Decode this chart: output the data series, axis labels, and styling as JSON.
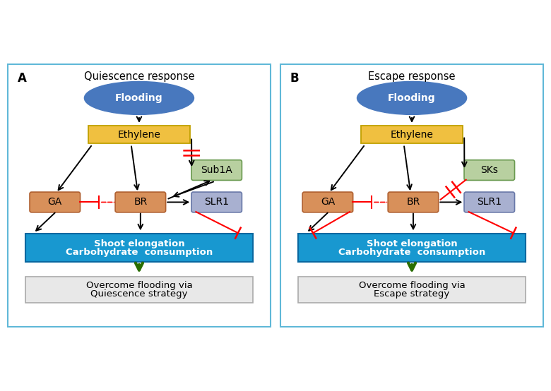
{
  "panel_A": {
    "label": "A",
    "title": "Quiescence response",
    "flooding_text": "Flooding",
    "ethylene_text": "Ethylene",
    "gene1_text": "Sub1A",
    "ga_text": "GA",
    "br_text": "BR",
    "slr1_text": "SLR1",
    "elongation_line1": "Shoot elongation",
    "elongation_line2": "Carbohydrate  consumption",
    "outcome_line1": "Overcome flooding via",
    "outcome_line2": "Quiescence strategy"
  },
  "panel_B": {
    "label": "B",
    "title": "Escape response",
    "flooding_text": "Flooding",
    "ethylene_text": "Ethylene",
    "gene1_text": "SKs",
    "ga_text": "GA",
    "br_text": "BR",
    "slr1_text": "SLR1",
    "elongation_line1": "Shoot elongation",
    "elongation_line2": "Carbohydrate  consumption",
    "outcome_line1": "Overcome flooding via",
    "outcome_line2": "Escape strategy"
  },
  "colors": {
    "flooding_fill": "#4878be",
    "flooding_text": "white",
    "ethylene_fill": "#f0c040",
    "ethylene_edge": "#c0a000",
    "ethylene_text": "black",
    "gene1_fill": "#b8d0a0",
    "gene1_edge": "#6a9a50",
    "gene1_text": "black",
    "ga_fill": "#d8905a",
    "ga_edge": "#b06030",
    "ga_text": "black",
    "br_fill": "#d8905a",
    "br_edge": "#b06030",
    "br_text": "black",
    "slr1_fill": "#a8b0d0",
    "slr1_edge": "#6878a8",
    "slr1_text": "black",
    "elongation_fill": "#1898d0",
    "elongation_edge": "#0868a0",
    "elongation_text": "white",
    "outcome_fill": "#e8e8e8",
    "outcome_edge": "#aaaaaa",
    "outcome_text": "black",
    "black_arrow": "black",
    "red_line": "red",
    "green_arrow": "#2a6e00",
    "border": "#60b8d8",
    "background": "white"
  },
  "figsize": [
    7.8,
    5.54
  ],
  "dpi": 100
}
